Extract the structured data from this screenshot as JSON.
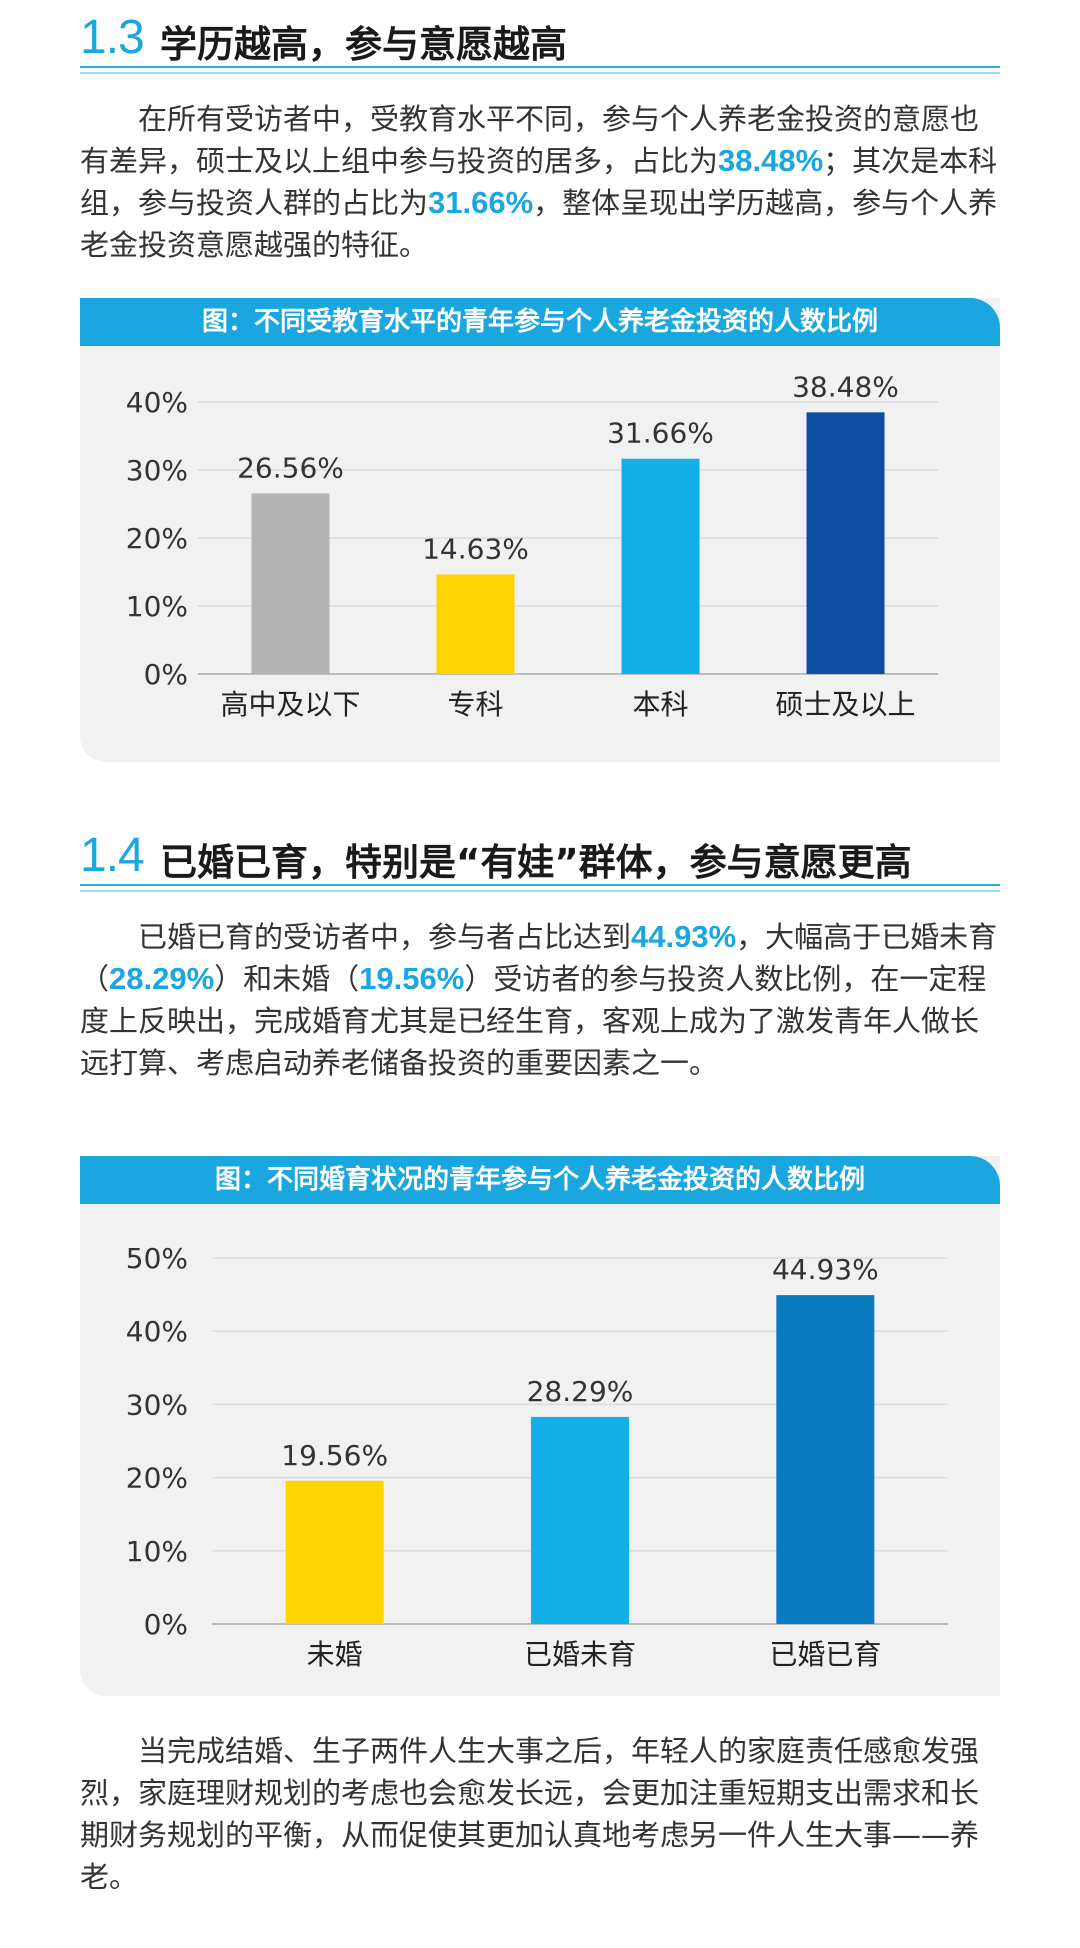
{
  "section1": {
    "number": "1.3",
    "title": "学历越高，参与意愿越高",
    "para": {
      "t1": "在所有受访者中，受教育水平不同，参与个人养老金投资的意愿也有差异，硕士及以上组中参与投资的居多，占比为",
      "h1": "38.48%",
      "t2": "；其次是本科组，参与投资人群的占比为",
      "h2": "31.66%",
      "t3": "，整体呈现出学历越高，参与个人养老金投资意愿越强的特征。"
    }
  },
  "section2": {
    "number": "1.4",
    "title": "已婚已育，特别是“有娃”群体，参与意愿更高",
    "para": {
      "t1": "已婚已育的受访者中，参与者占比达到",
      "h1": "44.93%",
      "t2": "，大幅高于已婚未育（",
      "h2": "28.29%",
      "t3": "）和未婚（",
      "h3": "19.56%",
      "t4": "）受访者的参与投资人数比例，在一定程度上反映出，完成婚育尤其是已经生育，客观上成为了激发青年人做长远打算、考虑启动养老储备投资的重要因素之一。"
    }
  },
  "closing": "当完成结婚、生子两件人生大事之后，年轻人的家庭责任感愈发强烈，家庭理财规划的考虑也会愈发长远，会更加注重短期支出需求和长期财务规划的平衡，从而促使其更加认真地考虑另一件人生大事——养老。",
  "chart_data": [
    {
      "type": "bar",
      "title": "图：不同受教育水平的青年参与个人养老金投资的人数比例",
      "categories": [
        "高中及以下",
        "专科",
        "本科",
        "硕士及以上"
      ],
      "values": [
        26.56,
        14.63,
        31.66,
        38.48
      ],
      "labels": [
        "26.56%",
        "14.63%",
        "31.66%",
        "38.48%"
      ],
      "colors": [
        "#b3b3b3",
        "#ffd400",
        "#12b0e6",
        "#0c4fa0"
      ],
      "ylim": [
        0,
        40
      ],
      "yticks": [
        "0%",
        "10%",
        "20%",
        "30%",
        "40%"
      ],
      "grid": true
    },
    {
      "type": "bar",
      "title": "图：不同婚育状况的青年参与个人养老金投资的人数比例",
      "categories": [
        "未婚",
        "已婚未育",
        "已婚已育"
      ],
      "values": [
        19.56,
        28.29,
        44.93
      ],
      "labels": [
        "19.56%",
        "28.29%",
        "44.93%"
      ],
      "colors": [
        "#ffd400",
        "#12b0e6",
        "#0a7bc0"
      ],
      "ylim": [
        0,
        50
      ],
      "yticks": [
        "0%",
        "10%",
        "20%",
        "30%",
        "40%",
        "50%"
      ],
      "grid": true
    }
  ]
}
